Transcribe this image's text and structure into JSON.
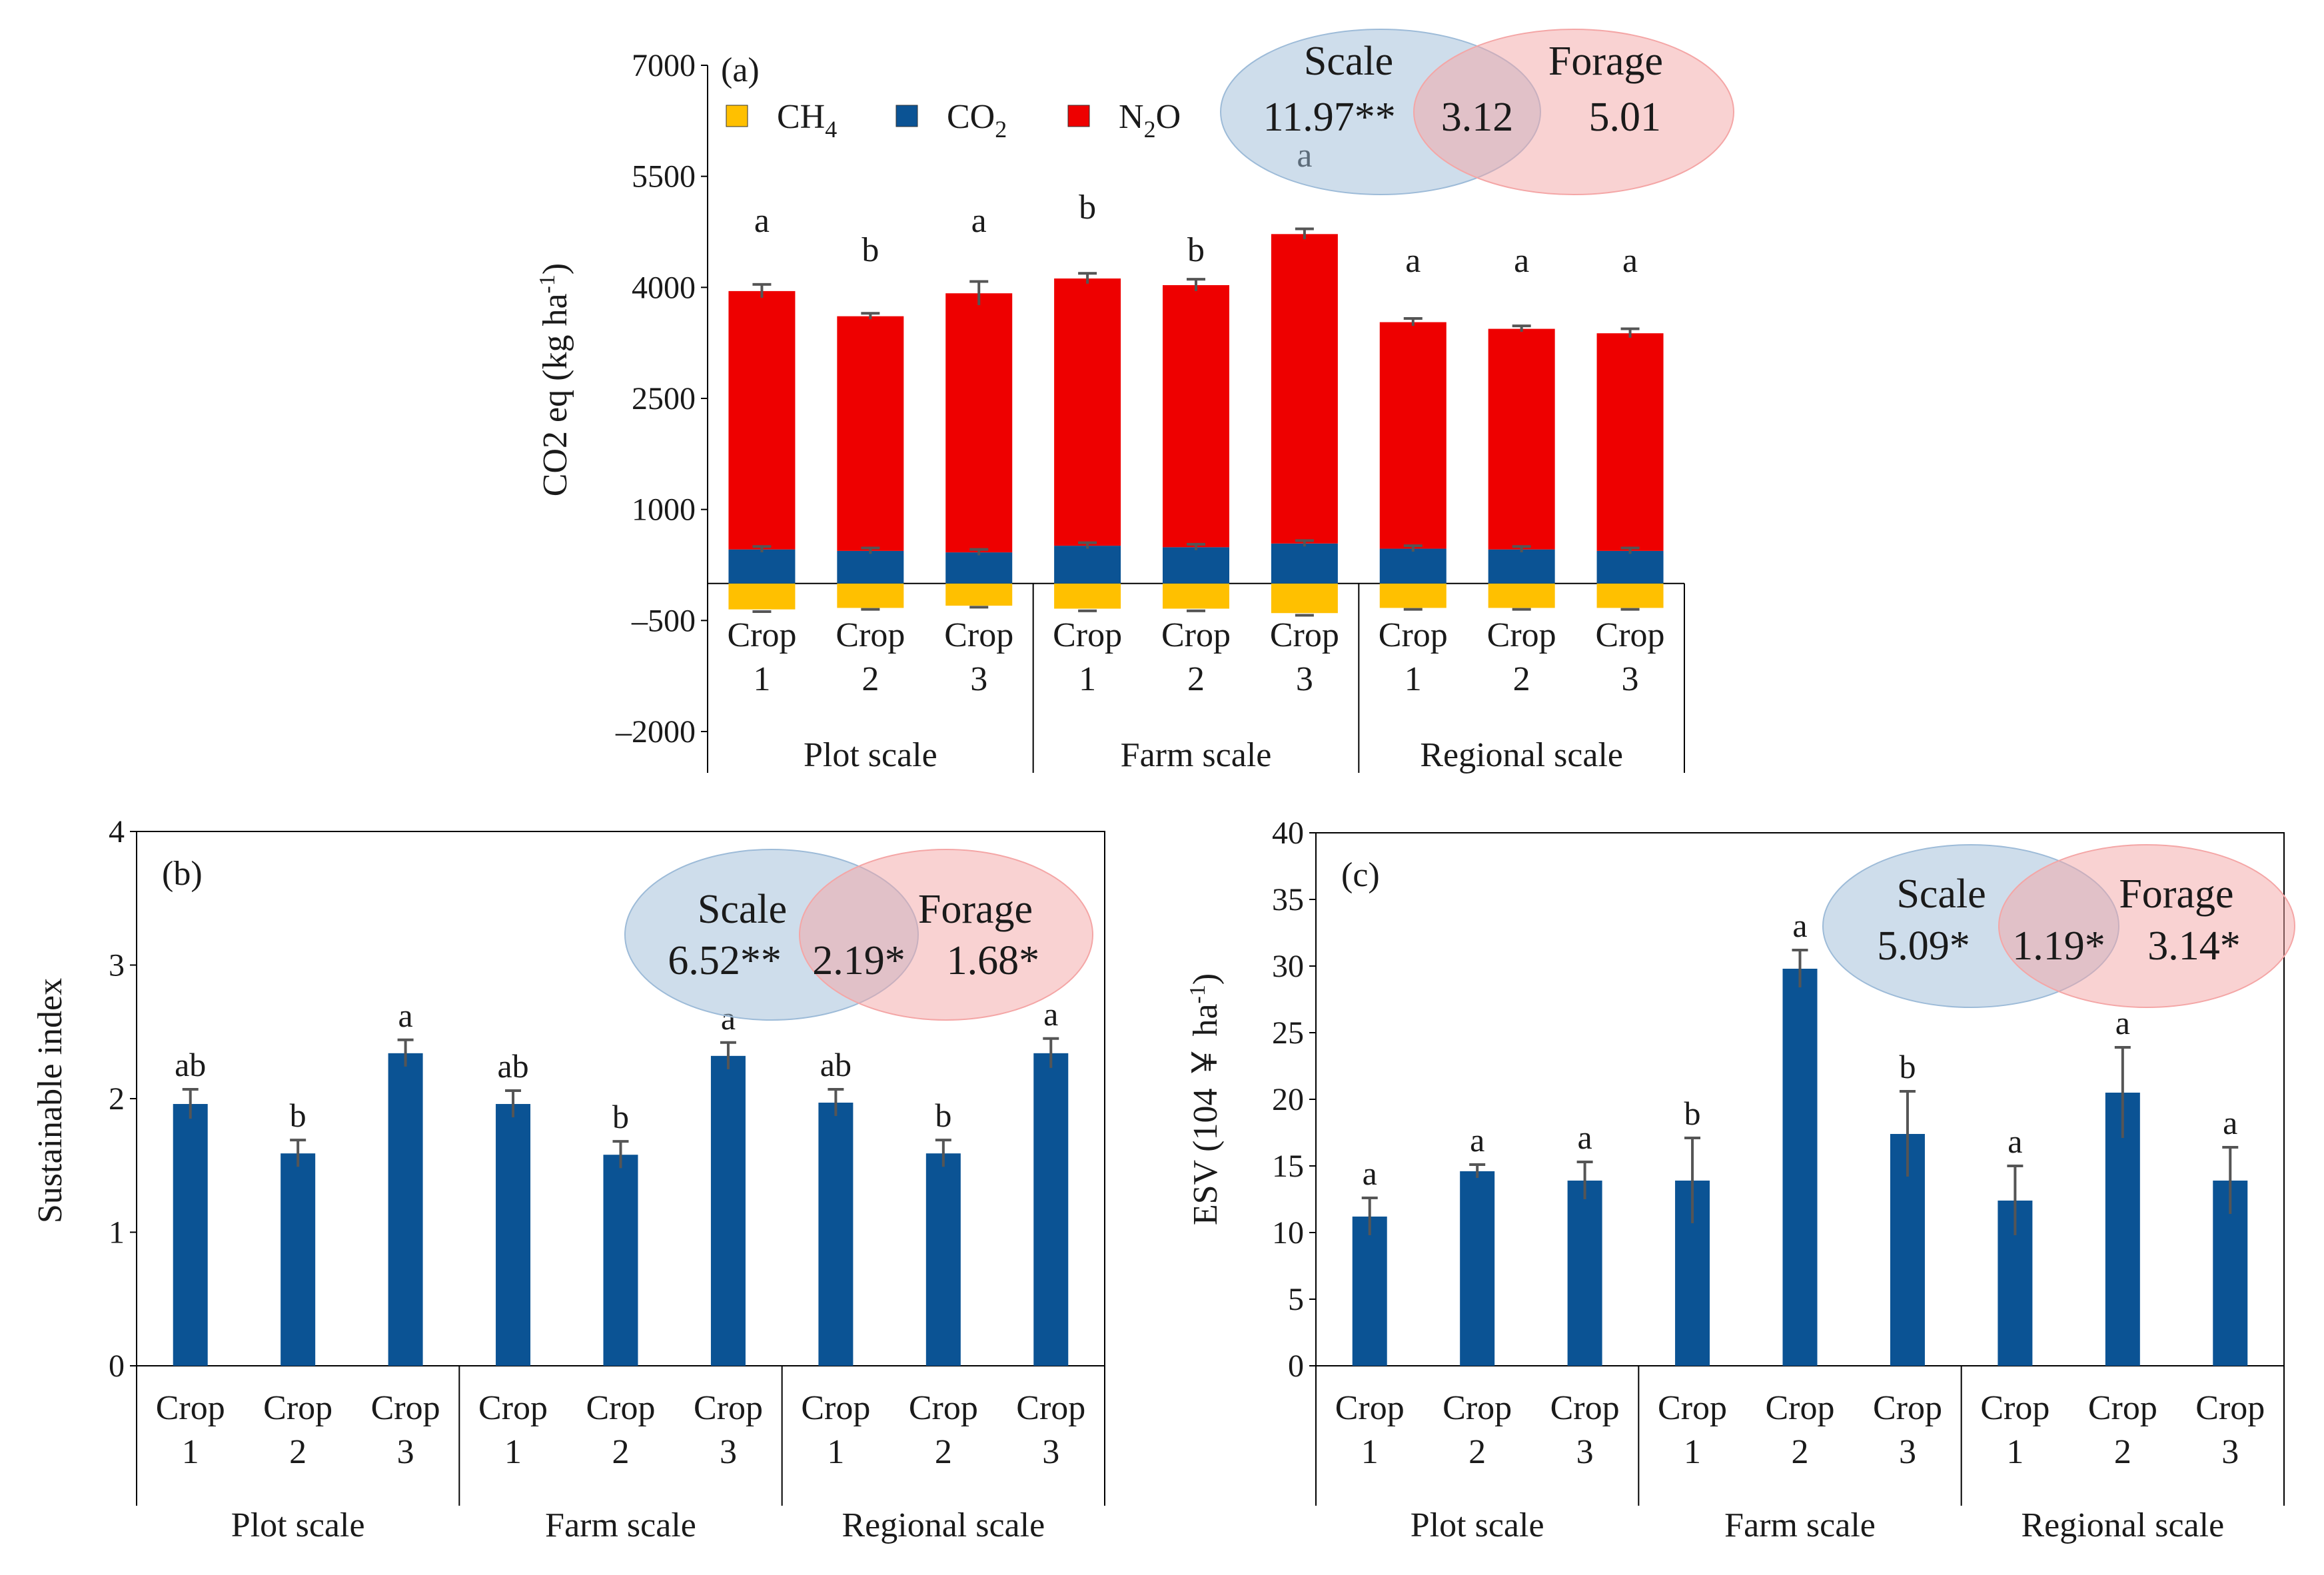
{
  "colors": {
    "ch4": "#FFC000",
    "co2": "#0B5394",
    "n2o": "#EE0000",
    "bar": "#0B5394",
    "error": "#555555",
    "scale_ellipse": "#9DBBD8",
    "forage_ellipse": "#F4A6A6"
  },
  "chart_data": [
    {
      "id": "a",
      "type": "bar",
      "stacked": true,
      "panel_label": "(a)",
      "ylabel": "CO2 eq (kg ha-1)",
      "ylabel_main": "CO2 eq (kg ha",
      "ylabel_sup": "-1",
      "ylabel_end": ")",
      "ylim": [
        -2000,
        7000
      ],
      "yticks": [
        7000,
        5500,
        4000,
        2500,
        1000,
        -500,
        -2000
      ],
      "ytick_labels": [
        "7000",
        "5500",
        "4000",
        "2500",
        "1000",
        "–500",
        "–2000"
      ],
      "categories": [
        "Crop 1",
        "Crop 2",
        "Crop 3",
        "Crop 1",
        "Crop 2",
        "Crop 3",
        "Crop 1",
        "Crop 2",
        "Crop 3"
      ],
      "groups": [
        "Plot scale",
        "Farm scale",
        "Regional scale"
      ],
      "series": [
        {
          "name": "CH4",
          "key": "ch4",
          "values": [
            -350,
            -330,
            -300,
            -340,
            -340,
            -400,
            -330,
            -330,
            -330
          ]
        },
        {
          "name": "CO2",
          "key": "co2",
          "values": [
            460,
            440,
            420,
            510,
            490,
            540,
            470,
            460,
            440
          ]
        },
        {
          "name": "N2O",
          "key": "n2o",
          "values": [
            3490,
            3170,
            3500,
            3610,
            3540,
            4180,
            3060,
            2980,
            2940
          ]
        }
      ],
      "totals_pos": [
        3950,
        3610,
        3920,
        4120,
        4030,
        4720,
        3530,
        3440,
        3380
      ],
      "errors": [
        90,
        40,
        160,
        70,
        80,
        70,
        50,
        40,
        60
      ],
      "neg_errors": [
        30,
        20,
        20,
        30,
        30,
        30,
        20,
        20,
        20
      ],
      "letters": [
        "a",
        "b",
        "a",
        "b",
        "b",
        "a",
        "a",
        "a",
        "a"
      ],
      "legend": [
        {
          "key": "ch4",
          "label": "CH",
          "sub": "4"
        },
        {
          "key": "co2",
          "label": "CO",
          "sub": "2"
        },
        {
          "key": "n2o",
          "label": "N",
          "sub": "2",
          "tail": "O"
        }
      ],
      "venn": {
        "left_title": "Scale",
        "right_title": "Forage",
        "left_value": "11.97**",
        "center_value": "3.12",
        "right_value": "5.01"
      }
    },
    {
      "id": "b",
      "type": "bar",
      "panel_label": "(b)",
      "ylabel": "Sustainable index",
      "ylim": [
        0,
        4
      ],
      "yticks": [
        0,
        1,
        2,
        3,
        4
      ],
      "ytick_labels": [
        "0",
        "1",
        "2",
        "3",
        "4"
      ],
      "categories": [
        "Crop 1",
        "Crop 2",
        "Crop 3",
        "Crop 1",
        "Crop 2",
        "Crop 3",
        "Crop 1",
        "Crop 2",
        "Crop 3"
      ],
      "groups": [
        "Plot scale",
        "Farm scale",
        "Regional scale"
      ],
      "values": [
        1.96,
        1.59,
        2.34,
        1.96,
        1.58,
        2.32,
        1.97,
        1.59,
        2.34
      ],
      "errors": [
        0.11,
        0.1,
        0.1,
        0.1,
        0.1,
        0.1,
        0.1,
        0.1,
        0.11
      ],
      "letters": [
        "ab",
        "b",
        "a",
        "ab",
        "b",
        "a",
        "ab",
        "b",
        "a"
      ],
      "venn": {
        "left_title": "Scale",
        "right_title": "Forage",
        "left_value": "6.52**",
        "center_value": "2.19*",
        "right_value": "1.68*"
      }
    },
    {
      "id": "c",
      "type": "bar",
      "panel_label": "(c)",
      "ylabel": "ESV (104 ￥ ha-1)",
      "ylabel_main": "ESV (104 ￥ ha",
      "ylabel_sup": "-1",
      "ylabel_end": ")",
      "ylim": [
        0,
        40
      ],
      "yticks": [
        0,
        5,
        10,
        15,
        20,
        25,
        30,
        35,
        40
      ],
      "ytick_labels": [
        "0",
        "5",
        "10",
        "15",
        "20",
        "25",
        "30",
        "35",
        "40"
      ],
      "categories": [
        "Crop 1",
        "Crop 2",
        "Crop 3",
        "Crop 1",
        "Crop 2",
        "Crop 3",
        "Crop 1",
        "Crop 2",
        "Crop 3"
      ],
      "groups": [
        "Plot scale",
        "Farm scale",
        "Regional scale"
      ],
      "values": [
        11.2,
        14.6,
        13.9,
        13.9,
        29.8,
        17.4,
        12.4,
        20.5,
        13.9
      ],
      "errors": [
        1.4,
        0.5,
        1.4,
        3.2,
        1.4,
        3.2,
        2.6,
        3.4,
        2.5
      ],
      "letters": [
        "a",
        "a",
        "a",
        "b",
        "a",
        "b",
        "a",
        "a",
        "a"
      ],
      "venn": {
        "left_title": "Scale",
        "right_title": "Forage",
        "left_value": "5.09*",
        "center_value": "1.19*",
        "right_value": "3.14*"
      }
    }
  ]
}
